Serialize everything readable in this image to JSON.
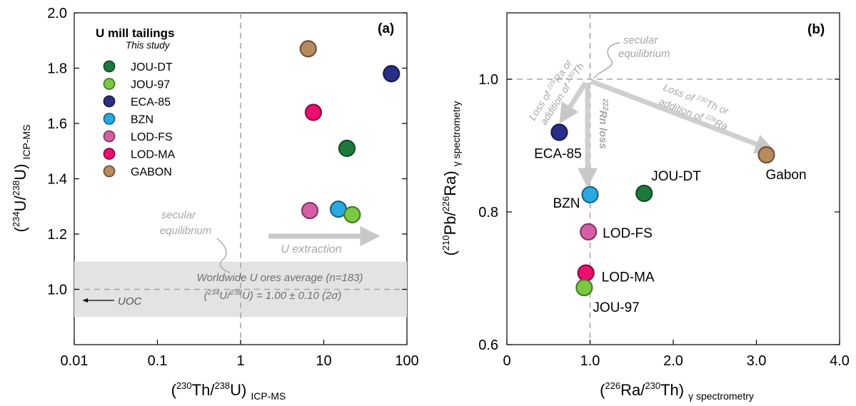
{
  "chart_data": [
    {
      "panel": "(a)",
      "type": "scatter",
      "xscale": "log",
      "xlim": [
        0.01,
        100
      ],
      "ylim": [
        0.8,
        2.0
      ],
      "xticks": [
        "0.01",
        "0.1",
        "1",
        "10",
        "100"
      ],
      "yticks": [
        "1.0",
        "1.2",
        "1.4",
        "1.6",
        "1.8",
        "2.0"
      ],
      "xlabel": {
        "open": "(",
        "sup": "230",
        "main1": "Th/",
        "sup2": "238",
        "main2": "U)",
        "sub": "ICP-MS"
      },
      "ylabel": {
        "open": "(",
        "sup": "234",
        "main1": "U/",
        "sup2": "238",
        "main2": "U)",
        "sub": "ICP-MS"
      },
      "legend": {
        "title": "U mill tailings",
        "subtitle": "This study",
        "placement": "top-left",
        "entries": [
          {
            "name": "JOU-DT",
            "color": "#1e7a3c"
          },
          {
            "name": "JOU-97",
            "color": "#7ac943"
          },
          {
            "name": "ECA-85",
            "color": "#2a2f86"
          },
          {
            "name": "BZN",
            "color": "#29a9e1"
          },
          {
            "name": "LOD-FS",
            "color": "#d55fa6"
          },
          {
            "name": "LOD-MA",
            "color": "#ec0f6f"
          },
          {
            "name": "GABON",
            "color": "#b88a5e"
          }
        ]
      },
      "points": [
        {
          "name": "GABON",
          "x": 6.5,
          "y": 1.87,
          "color": "#b88a5e"
        },
        {
          "name": "ECA-85",
          "x": 65,
          "y": 1.78,
          "color": "#2a2f86"
        },
        {
          "name": "LOD-MA",
          "x": 7.5,
          "y": 1.64,
          "color": "#ec0f6f"
        },
        {
          "name": "JOU-DT",
          "x": 19,
          "y": 1.51,
          "color": "#1e7a3c"
        },
        {
          "name": "LOD-FS",
          "x": 6.8,
          "y": 1.285,
          "color": "#d55fa6"
        },
        {
          "name": "BZN",
          "x": 15,
          "y": 1.29,
          "color": "#29a9e1"
        },
        {
          "name": "JOU-97",
          "x": 22,
          "y": 1.27,
          "color": "#7ac943"
        }
      ],
      "annotations": {
        "secular_line1": "secular",
        "secular_line2": "equilibrium",
        "u_extraction": "U extraction",
        "worldwide_line1": "Worldwide U ores average (n=183)",
        "worldwide_line2": {
          "open": "(",
          "sup": "234",
          "main1": "U/",
          "sup2": "238",
          "main2": "U) = 1.00 ± 0.10 (2σ)"
        },
        "uoc": "UOC"
      },
      "band": {
        "ymin": 0.9,
        "ymax": 1.1
      },
      "reference_lines": {
        "x": 1,
        "y": 1.0
      }
    },
    {
      "panel": "(b)",
      "type": "scatter",
      "xlim": [
        0,
        4.0
      ],
      "ylim": [
        0.6,
        1.1
      ],
      "xticks": [
        "0",
        "1.0",
        "2.0",
        "3.0",
        "4.0"
      ],
      "yticks": [
        "0.6",
        "0.8",
        "1.0"
      ],
      "xlabel": {
        "open": "(",
        "sup": "226",
        "main1": "Ra/",
        "sup2": "230",
        "main2": "Th)",
        "sub": "γ spectrometry"
      },
      "ylabel": {
        "open": "(",
        "sup": "210",
        "main1": "Pb/",
        "sup2": "226",
        "main2": "Ra)",
        "sub": "γ spectrometry"
      },
      "points": [
        {
          "name": "ECA-85",
          "x": 0.63,
          "y": 0.92,
          "color": "#2a2f86"
        },
        {
          "name": "BZN",
          "x": 1.0,
          "y": 0.826,
          "color": "#29a9e1"
        },
        {
          "name": "JOU-DT",
          "x": 1.65,
          "y": 0.828,
          "color": "#1e7a3c"
        },
        {
          "name": "Gabon",
          "x": 3.12,
          "y": 0.886,
          "color": "#b88a5e"
        },
        {
          "name": "LOD-FS",
          "x": 0.98,
          "y": 0.77,
          "color": "#d55fa6"
        },
        {
          "name": "LOD-MA",
          "x": 0.95,
          "y": 0.708,
          "color": "#ec0f6f"
        },
        {
          "name": "JOU-97",
          "x": 0.93,
          "y": 0.686,
          "color": "#7ac943"
        }
      ],
      "annotations": {
        "secular_line1": "secular",
        "secular_line2": "equilibrium",
        "loss_ra_line1": {
          "pre": "Loss of ",
          "sup": "226",
          "post": "Ra or"
        },
        "loss_ra_line2": {
          "pre": "addition of ",
          "sup": "230",
          "post": "Th"
        },
        "rn_loss": {
          "sup": "222",
          "post": "Rn loss"
        },
        "loss_th_line1": {
          "pre": "Loss of ",
          "sup": "230",
          "post": "Th or"
        },
        "loss_th_line2": {
          "pre": "addition of ",
          "sup": "226",
          "post": "Ra"
        }
      },
      "reference_lines": {
        "x": 1.0,
        "y": 1.0
      }
    }
  ]
}
